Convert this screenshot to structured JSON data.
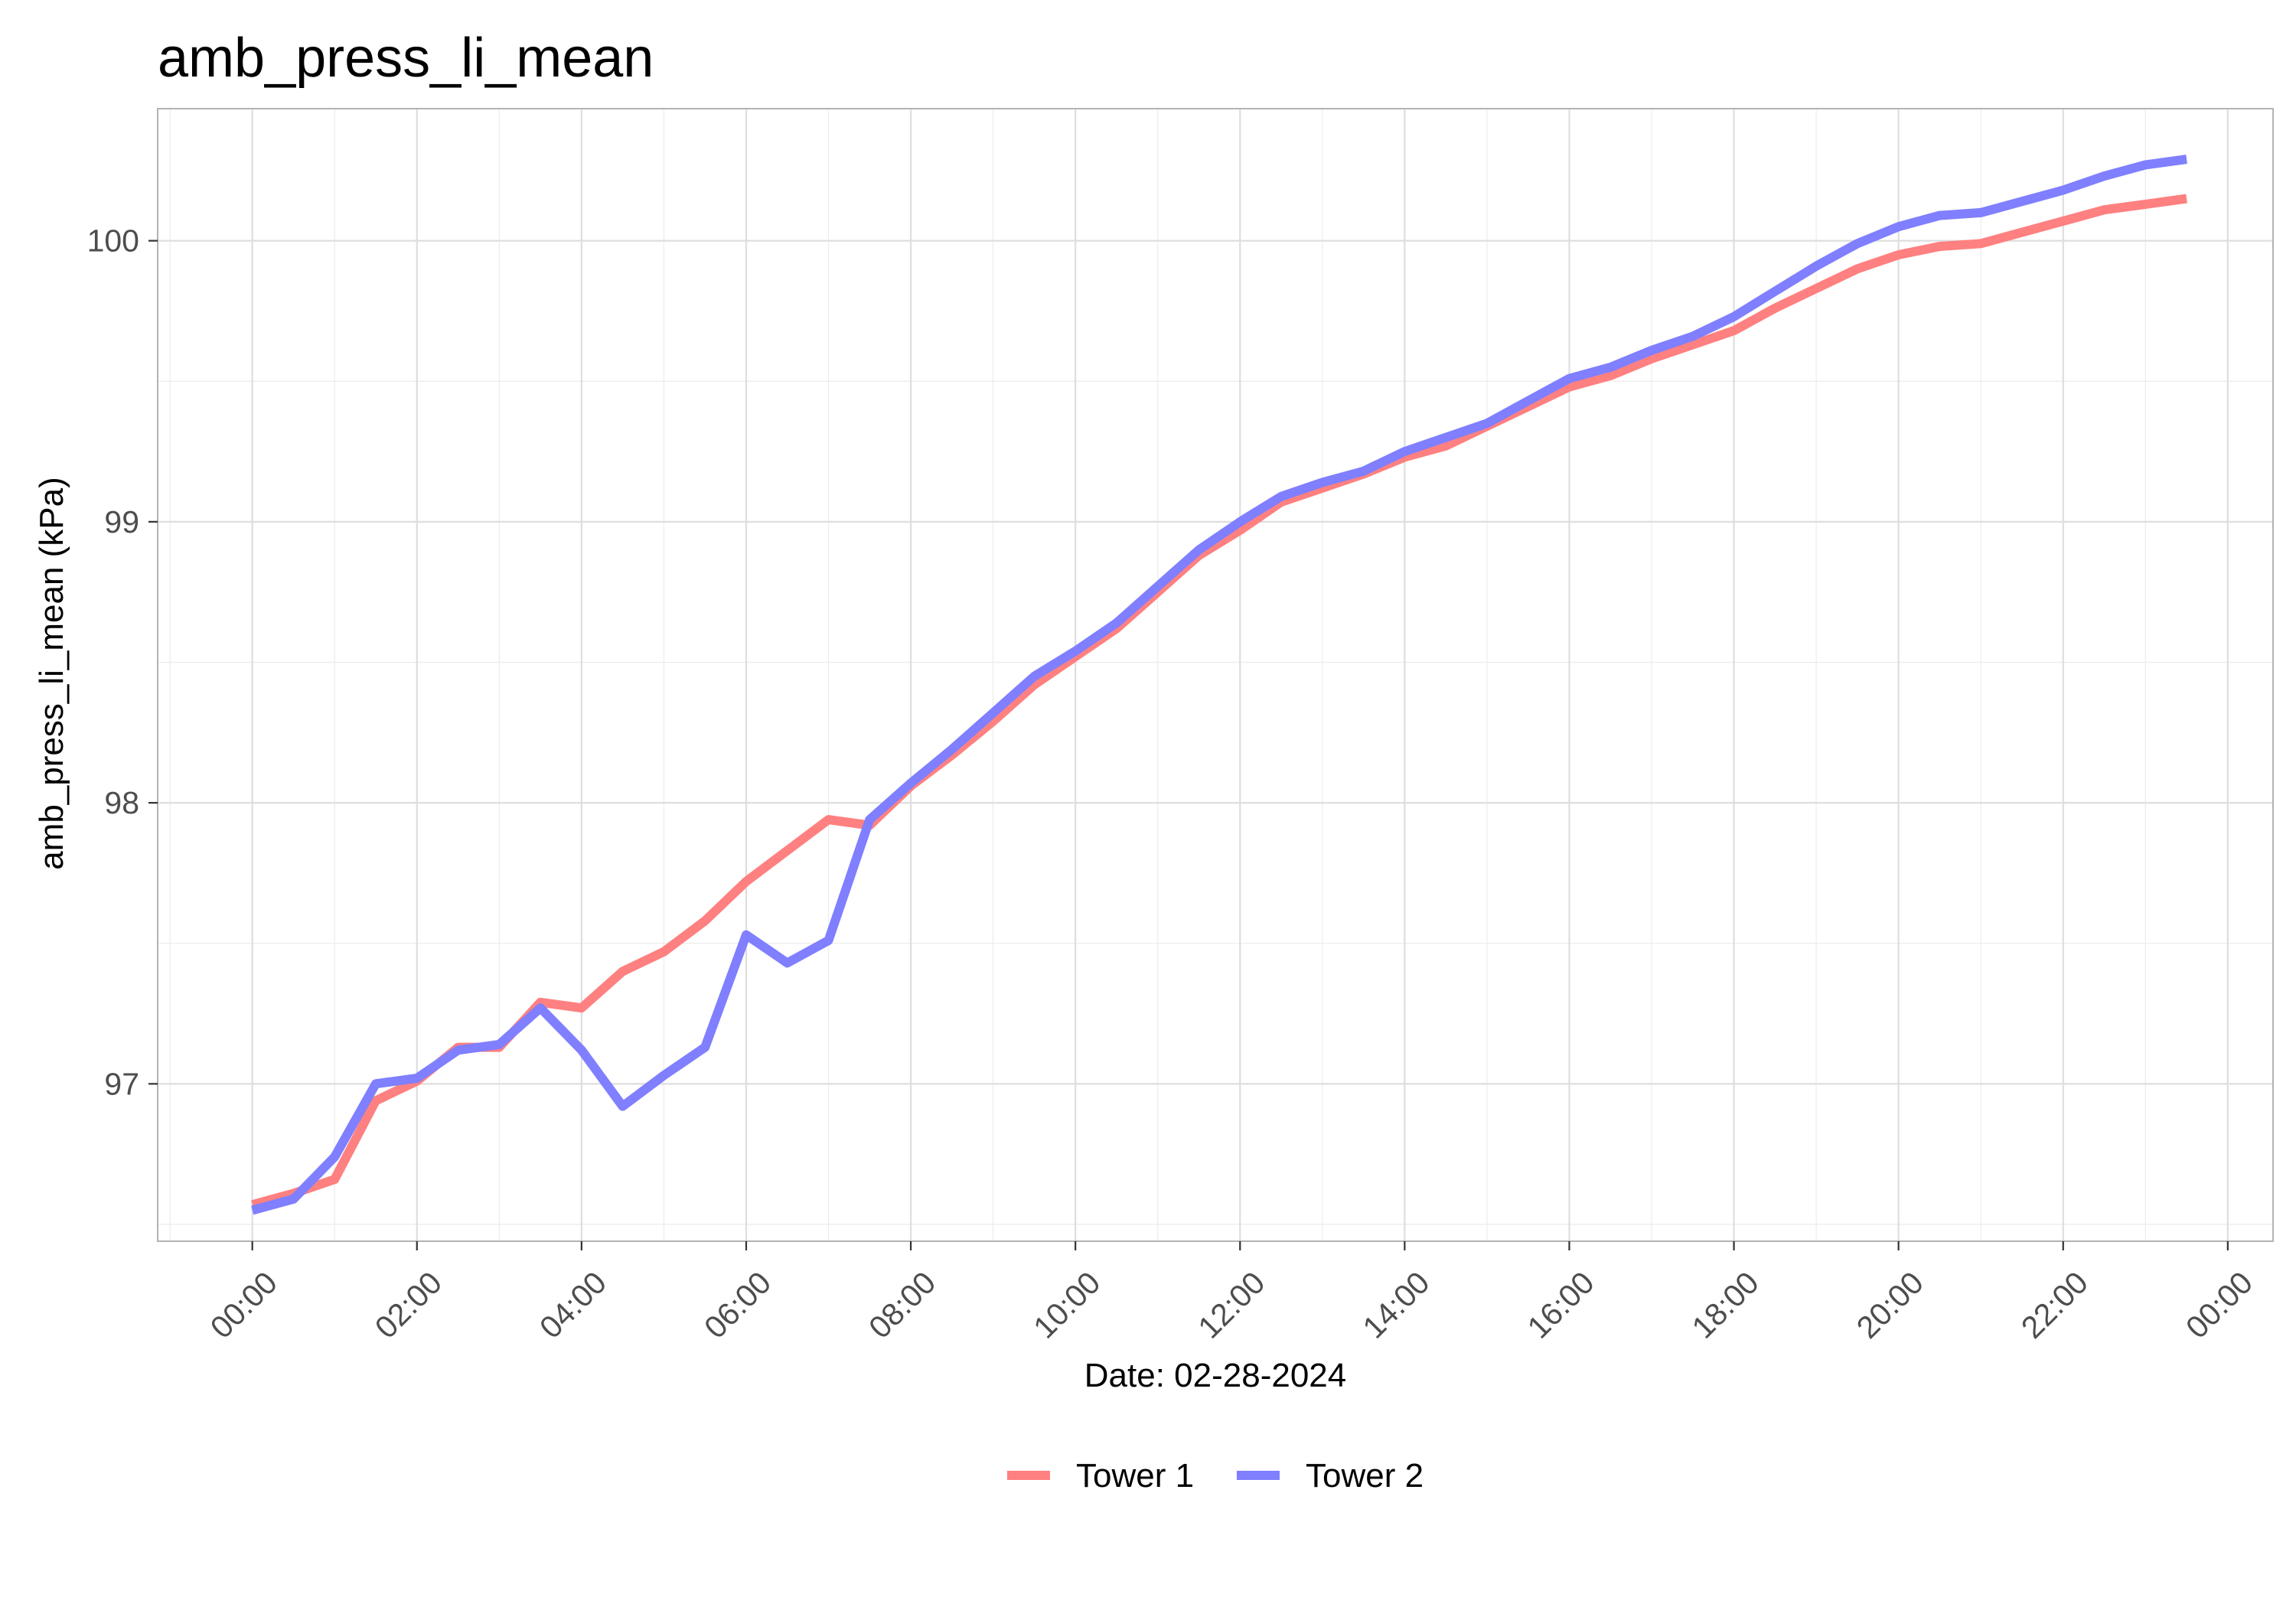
{
  "chart_data": {
    "type": "line",
    "title": "amb_press_li_mean",
    "xlabel": "Date: 02-28-2024",
    "ylabel": "amb_press_li_mean (kPa)",
    "x_unit": "time of day (hours)",
    "xlim": [
      -1.15,
      24.55
    ],
    "ylim": [
      96.44,
      100.47
    ],
    "x_ticks": [
      {
        "value": 0,
        "label": "00:00"
      },
      {
        "value": 2,
        "label": "02:00"
      },
      {
        "value": 4,
        "label": "04:00"
      },
      {
        "value": 6,
        "label": "06:00"
      },
      {
        "value": 8,
        "label": "08:00"
      },
      {
        "value": 10,
        "label": "10:00"
      },
      {
        "value": 12,
        "label": "12:00"
      },
      {
        "value": 14,
        "label": "14:00"
      },
      {
        "value": 16,
        "label": "16:00"
      },
      {
        "value": 18,
        "label": "18:00"
      },
      {
        "value": 20,
        "label": "20:00"
      },
      {
        "value": 22,
        "label": "22:00"
      },
      {
        "value": 24,
        "label": "00:00"
      }
    ],
    "y_ticks": [
      {
        "value": 97,
        "label": "97"
      },
      {
        "value": 98,
        "label": "98"
      },
      {
        "value": 99,
        "label": "99"
      },
      {
        "value": 100,
        "label": "100"
      }
    ],
    "grid": true,
    "legend_position": "bottom",
    "x": [
      0,
      0.5,
      1,
      1.5,
      2,
      2.5,
      3,
      3.5,
      4,
      4.5,
      5,
      5.5,
      6,
      6.5,
      7,
      7.5,
      8,
      8.5,
      9,
      9.5,
      10,
      10.5,
      11,
      11.5,
      12,
      12.5,
      13,
      13.5,
      14,
      14.5,
      15,
      15.5,
      16,
      16.5,
      17,
      17.5,
      18,
      18.5,
      19,
      19.5,
      20,
      20.5,
      21,
      21.5,
      22,
      22.5,
      23,
      23.5
    ],
    "series": [
      {
        "name": "Tower 1",
        "color": "#ff8080",
        "values": [
          96.57,
          96.61,
          96.66,
          96.94,
          97.01,
          97.13,
          97.13,
          97.29,
          97.27,
          97.4,
          97.47,
          97.58,
          97.72,
          97.83,
          97.94,
          97.92,
          98.06,
          98.17,
          98.29,
          98.42,
          98.52,
          98.62,
          98.75,
          98.88,
          98.97,
          99.07,
          99.12,
          99.17,
          99.23,
          99.27,
          99.34,
          99.41,
          99.48,
          99.52,
          99.58,
          99.63,
          99.68,
          99.76,
          99.83,
          99.9,
          99.95,
          99.98,
          99.99,
          100.03,
          100.07,
          100.11,
          100.13,
          100.15
        ]
      },
      {
        "name": "Tower 2",
        "color": "#7f7fff",
        "values": [
          96.55,
          96.59,
          96.74,
          97.0,
          97.02,
          97.12,
          97.14,
          97.27,
          97.12,
          96.92,
          97.03,
          97.13,
          97.53,
          97.43,
          97.51,
          97.94,
          98.07,
          98.19,
          98.32,
          98.45,
          98.54,
          98.64,
          98.77,
          98.9,
          99.0,
          99.09,
          99.14,
          99.18,
          99.25,
          99.3,
          99.35,
          99.43,
          99.51,
          99.55,
          99.61,
          99.66,
          99.73,
          99.82,
          99.91,
          99.99,
          100.05,
          100.09,
          100.1,
          100.14,
          100.18,
          100.23,
          100.27,
          100.29
        ]
      }
    ]
  }
}
